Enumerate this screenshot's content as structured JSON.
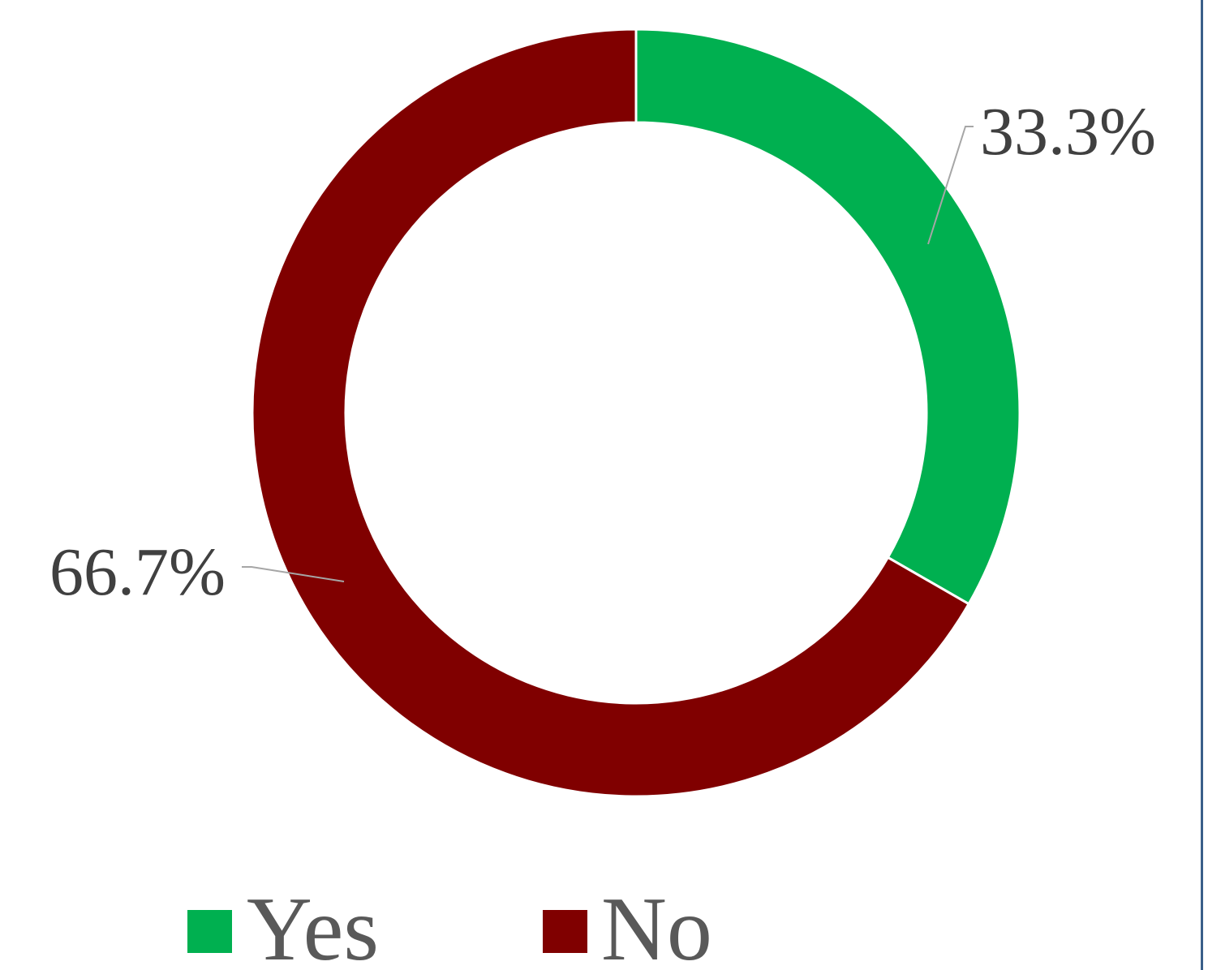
{
  "chart_data": {
    "type": "pie",
    "variant": "doughnut",
    "title": "",
    "series": [
      {
        "categories": [
          "Yes",
          "No"
        ],
        "values": [
          33.3,
          66.7
        ],
        "labels": [
          "33.3%",
          "66.7%"
        ],
        "colors": [
          "#00b050",
          "#800000"
        ]
      }
    ],
    "legend": {
      "position": "bottom",
      "entries": [
        "Yes",
        "No"
      ]
    }
  }
}
